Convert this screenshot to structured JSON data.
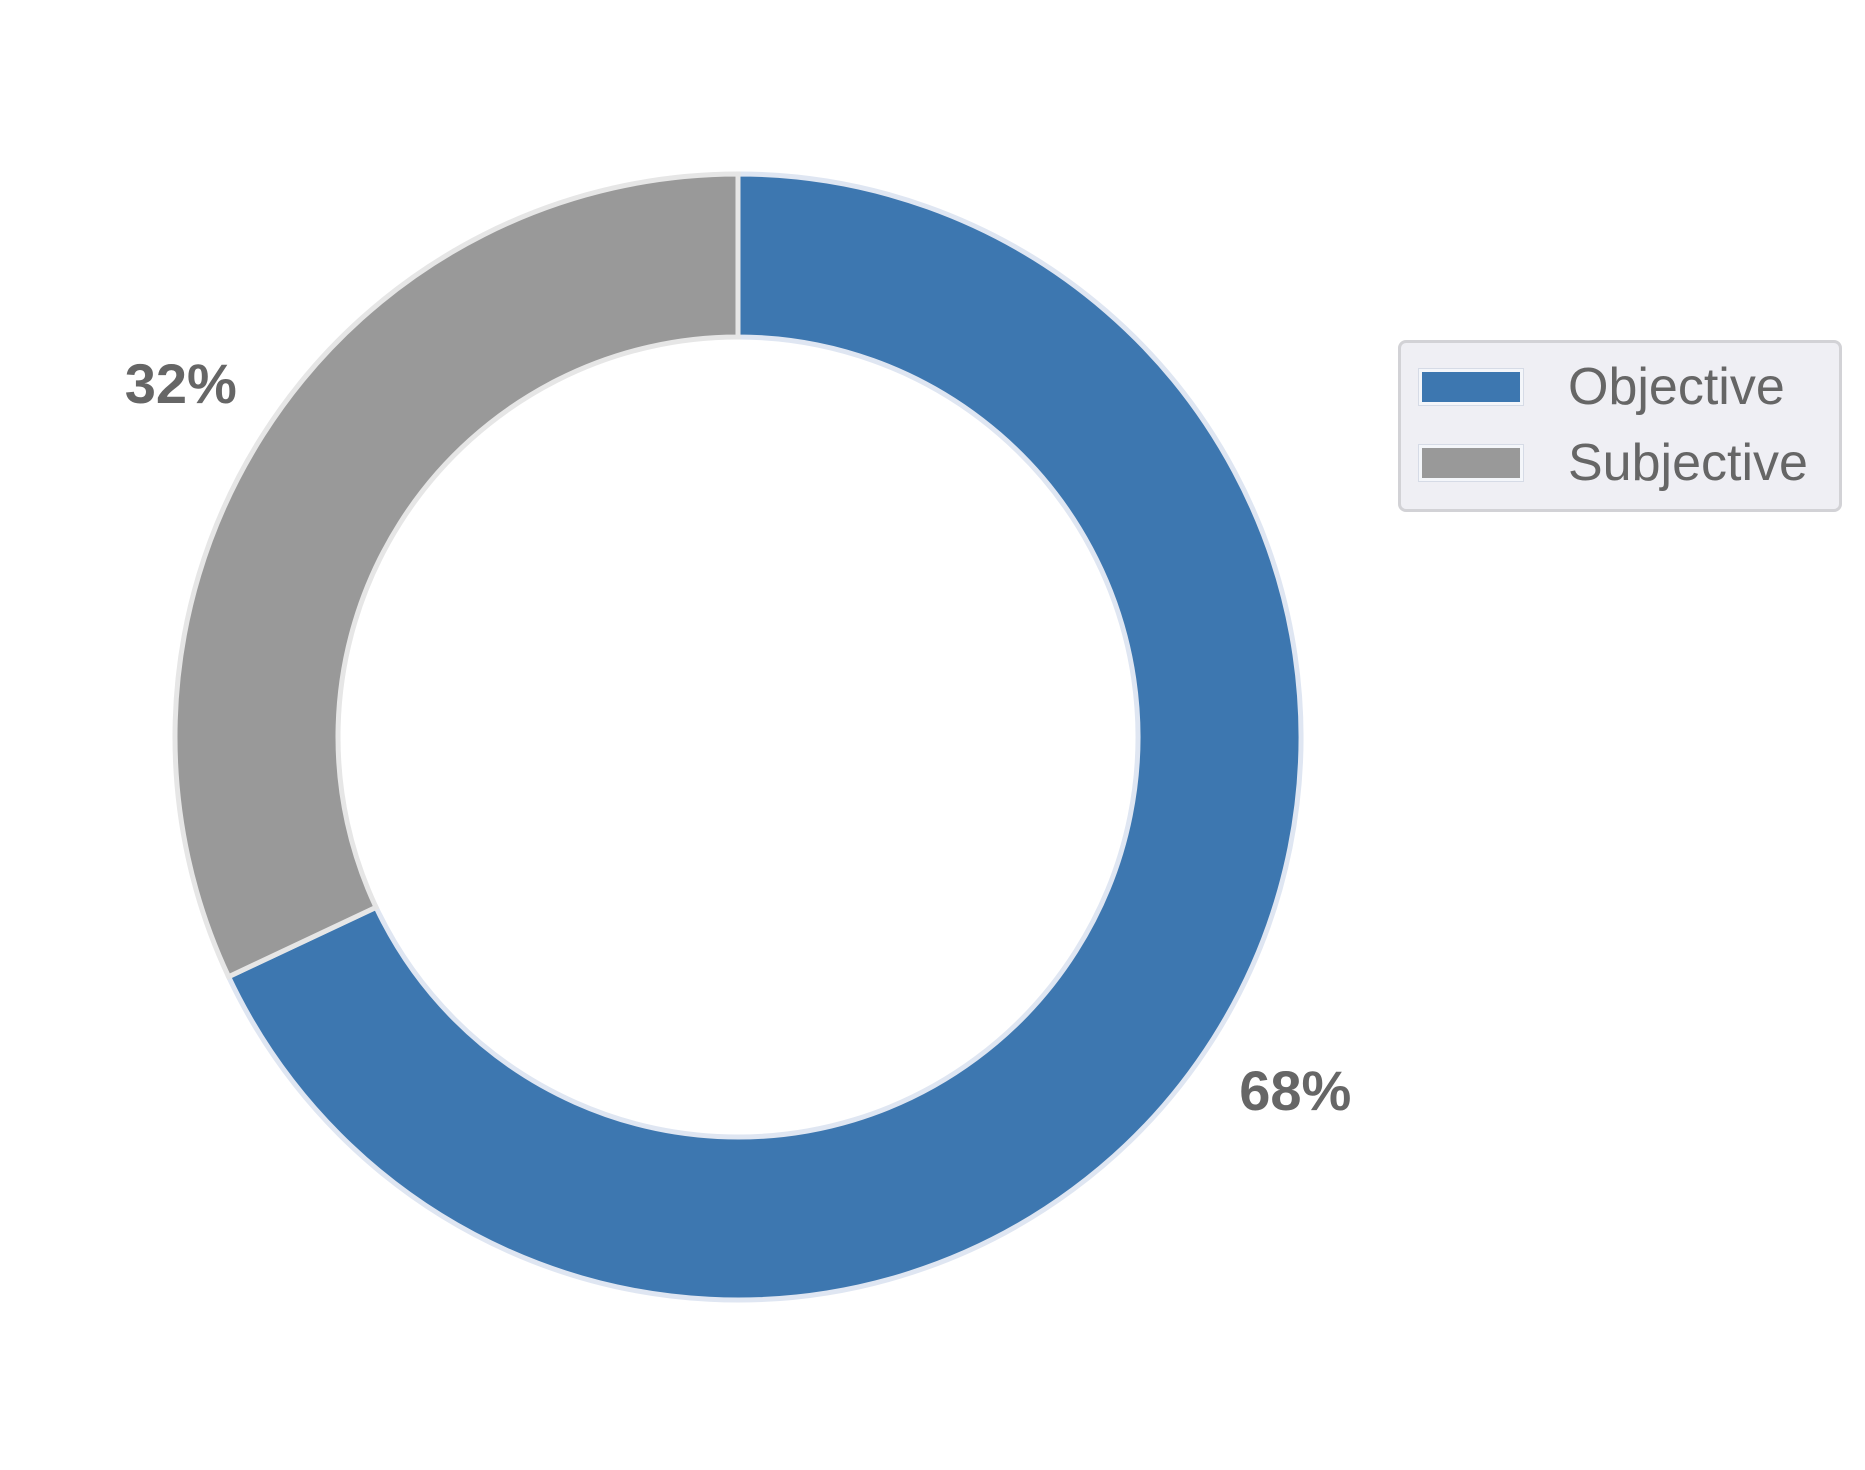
{
  "chart_data": {
    "type": "pie",
    "donut": true,
    "start_angle_deg": 90,
    "direction": "clockwise",
    "categories": [
      "Objective",
      "Subjective"
    ],
    "values": [
      68,
      32
    ],
    "value_labels": [
      "68%",
      "32%"
    ],
    "colors": [
      "#3d77b0",
      "#999999"
    ],
    "legend": {
      "placement": "right",
      "entries": [
        "Objective",
        "Subjective"
      ]
    },
    "title": "",
    "xlabel": "",
    "ylabel": ""
  }
}
